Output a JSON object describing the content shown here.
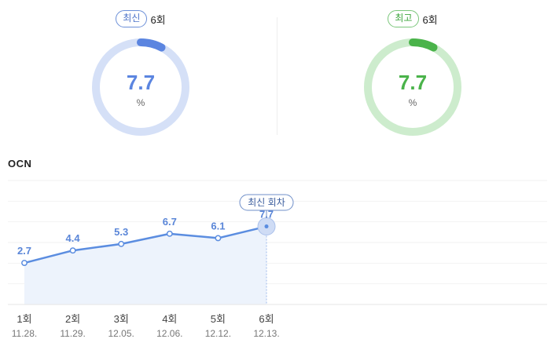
{
  "latest": {
    "badge": "최신",
    "episode": "6회",
    "value": "7.7",
    "unit": "%",
    "fraction": 0.077,
    "color": "#5b85e0",
    "track_color": "#d5e0f7"
  },
  "best": {
    "badge": "최고",
    "episode": "6회",
    "value": "7.7",
    "unit": "%",
    "fraction": 0.077,
    "color": "#4ab34a",
    "track_color": "#cdeccd"
  },
  "chart_data": {
    "type": "line",
    "title": "OCN",
    "categories": [
      "1회",
      "2회",
      "3회",
      "4회",
      "5회",
      "6회"
    ],
    "dates": [
      "11.28.",
      "11.29.",
      "12.05.",
      "12.06.",
      "12.12.",
      "12.13."
    ],
    "values": [
      2.7,
      4.4,
      5.3,
      6.7,
      6.1,
      7.7
    ],
    "value_labels": [
      "2.7",
      "4.4",
      "5.3",
      "6.7",
      "6.1",
      "7.7"
    ],
    "ylim": [
      -3,
      14
    ],
    "grid": true,
    "annotation": "최신 회차",
    "line_color": "#5b8de0",
    "area_color": "#edf3fc"
  }
}
